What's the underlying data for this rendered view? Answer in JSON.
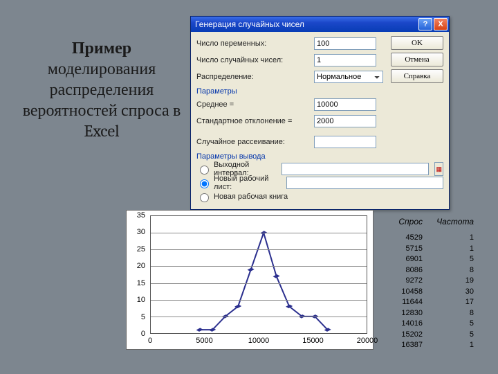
{
  "slide": {
    "title_strong": "Пример",
    "title_rest": "моделирования распределения вероятностей спроса в Excel"
  },
  "dialog": {
    "title": "Генерация случайных чисел",
    "help_glyph": "?",
    "close_glyph": "X",
    "buttons": {
      "ok": "OK",
      "cancel": "Отмена",
      "help": "Справка"
    },
    "fields": {
      "num_vars_label": "Число переменных:",
      "num_vars_value": "100",
      "num_rand_label": "Число случайных чисел:",
      "num_rand_value": "1",
      "dist_label": "Распределение:",
      "dist_value": "Нормальное",
      "params_header": "Параметры",
      "mean_label": "Среднее =",
      "mean_value": "10000",
      "stdev_label": "Стандартное отклонение =",
      "stdev_value": "2000",
      "seed_label": "Случайное рассеивание:",
      "seed_value": "",
      "output_header": "Параметры вывода",
      "out_range_label": "Выходной интервал:",
      "out_range_value": "",
      "new_sheet_label": "Новый рабочий лист:",
      "new_sheet_value": "",
      "new_book_label": "Новая рабочая книга"
    }
  },
  "chart": {
    "type": "line",
    "x_min": 0,
    "x_max": 20000,
    "y_min": 0,
    "y_max": 35,
    "y_ticks": [
      0,
      5,
      10,
      15,
      20,
      25,
      30,
      35
    ],
    "x_ticks": [
      0,
      5000,
      10000,
      15000,
      20000
    ],
    "grid_color": "#8a8a8a",
    "series_color": "#2b2f8e",
    "marker_size": 4,
    "line_width": 2,
    "points": [
      {
        "x": 4529,
        "y": 1
      },
      {
        "x": 5715,
        "y": 1
      },
      {
        "x": 6901,
        "y": 5
      },
      {
        "x": 8086,
        "y": 8
      },
      {
        "x": 9272,
        "y": 19
      },
      {
        "x": 10458,
        "y": 30
      },
      {
        "x": 11644,
        "y": 17
      },
      {
        "x": 12830,
        "y": 8
      },
      {
        "x": 14016,
        "y": 5
      },
      {
        "x": 15202,
        "y": 5
      },
      {
        "x": 16387,
        "y": 1
      }
    ]
  },
  "table": {
    "col1_header": "Спрос",
    "col2_header": "Частота",
    "rows": [
      {
        "demand": "4529",
        "freq": "1"
      },
      {
        "demand": "5715",
        "freq": "1"
      },
      {
        "demand": "6901",
        "freq": "5"
      },
      {
        "demand": "8086",
        "freq": "8"
      },
      {
        "demand": "9272",
        "freq": "19"
      },
      {
        "demand": "10458",
        "freq": "30"
      },
      {
        "demand": "11644",
        "freq": "17"
      },
      {
        "demand": "12830",
        "freq": "8"
      },
      {
        "demand": "14016",
        "freq": "5"
      },
      {
        "demand": "15202",
        "freq": "5"
      },
      {
        "demand": "16387",
        "freq": "1"
      }
    ]
  }
}
